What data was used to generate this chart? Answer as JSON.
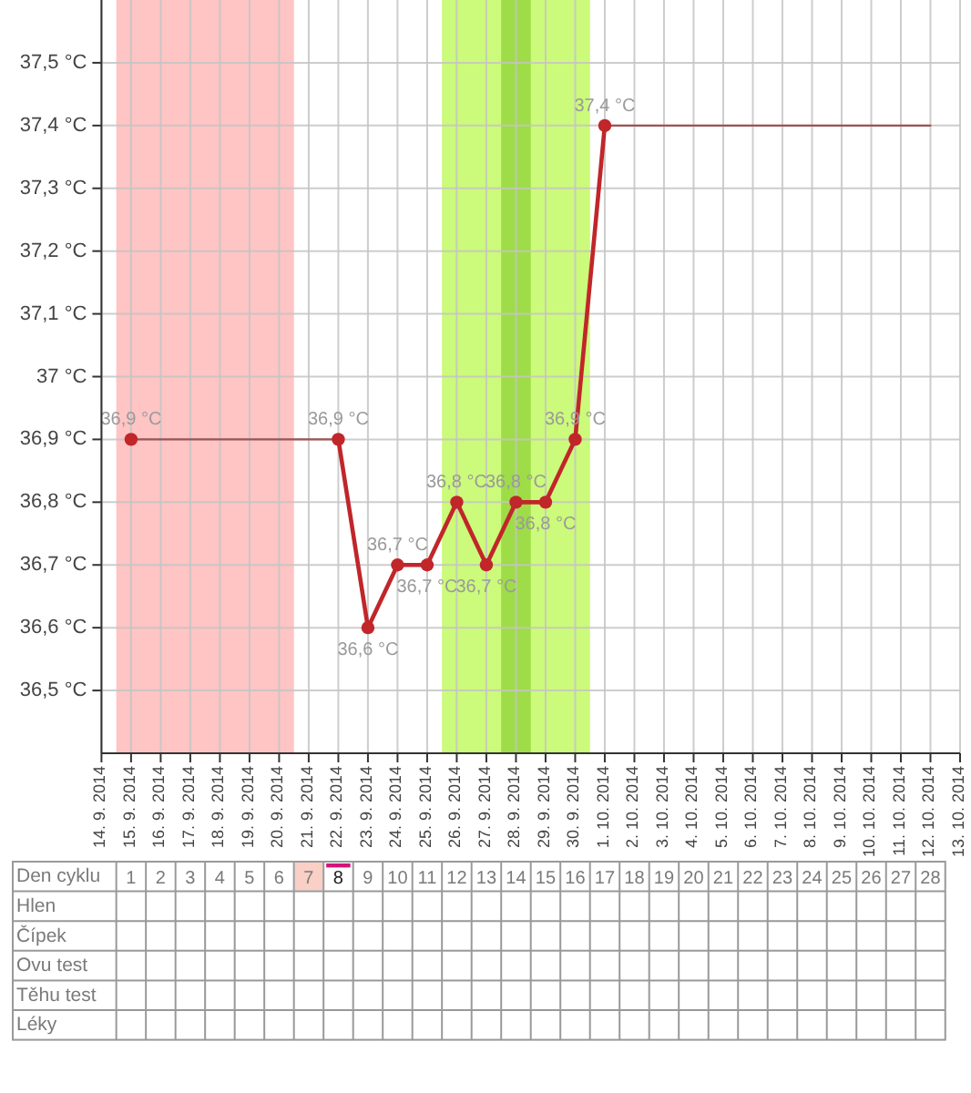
{
  "chart_data": {
    "type": "line",
    "categories": [
      "14. 9. 2014",
      "15. 9. 2014",
      "16. 9. 2014",
      "17. 9. 2014",
      "18. 9. 2014",
      "19. 9. 2014",
      "20. 9. 2014",
      "21. 9. 2014",
      "22. 9. 2014",
      "23. 9. 2014",
      "24. 9. 2014",
      "25. 9. 2014",
      "26. 9. 2014",
      "27. 9. 2014",
      "28. 9. 2014",
      "29. 9. 2014",
      "30. 9. 2014",
      "1. 10. 2014",
      "2. 10. 2014",
      "3. 10. 2014",
      "4. 10. 2014",
      "5. 10. 2014",
      "6. 10. 2014",
      "7. 10. 2014",
      "8. 10. 2014",
      "9. 10. 2014",
      "10. 10. 2014",
      "11. 10. 2014",
      "12. 10. 2014",
      "13. 10. 2014"
    ],
    "series": [
      {
        "color": "#a05252",
        "marker": "none",
        "values": [
          null,
          36.9,
          36.9,
          36.9,
          36.9,
          36.9,
          36.9,
          36.9,
          36.9,
          null,
          null,
          null,
          null,
          null,
          null,
          null,
          null,
          37.4,
          37.4,
          37.4,
          37.4,
          37.4,
          37.4,
          37.4,
          37.4,
          37.4,
          37.4,
          37.4,
          37.4,
          null
        ]
      },
      {
        "color": "#c0262a",
        "values": [
          null,
          36.9,
          null,
          null,
          null,
          null,
          null,
          null,
          36.9,
          36.6,
          36.7,
          36.7,
          36.8,
          36.7,
          36.8,
          36.8,
          36.9,
          37.4,
          null,
          null,
          null,
          null,
          null,
          null,
          null,
          null,
          null,
          null,
          null,
          null
        ],
        "value_labels": [
          null,
          "36,9 °C",
          null,
          null,
          null,
          null,
          null,
          null,
          "36,9 °C",
          "36,6 °C",
          "36,7 °C",
          "36,7 °C",
          "36,8 °C",
          "36,7 °C",
          "36,8 °C",
          "36,8 °C",
          "36,9 °C",
          "37,4 °C",
          null,
          null,
          null,
          null,
          null,
          null,
          null,
          null,
          null,
          null,
          null,
          null
        ]
      }
    ],
    "marker": "circle",
    "ylim": [
      36.4,
      37.6
    ],
    "yticks": [
      {
        "value": 36.5,
        "label": "36,5 °C"
      },
      {
        "value": 36.6,
        "label": "36,6 °C"
      },
      {
        "value": 36.7,
        "label": "36,7 °C"
      },
      {
        "value": 36.8,
        "label": "36,8 °C"
      },
      {
        "value": 36.9,
        "label": "36,9 °C"
      },
      {
        "value": 37,
        "label": "37 °C"
      },
      {
        "value": 37.1,
        "label": "37,1 °C"
      },
      {
        "value": 37.2,
        "label": "37,2 °C"
      },
      {
        "value": 37.3,
        "label": "37,3 °C"
      },
      {
        "value": 37.4,
        "label": "37,4 °C"
      },
      {
        "value": 37.5,
        "label": "37,5 °C"
      }
    ],
    "grid": true,
    "bands": [
      {
        "axis": "x",
        "from": "15. 9. 2014",
        "to": "20. 9. 2014",
        "color": "#ffc4c4"
      },
      {
        "axis": "x",
        "from": "26. 9. 2014",
        "to": "30. 9. 2014",
        "color": "#ccfa7a"
      },
      {
        "axis": "x",
        "from": "28. 9. 2014",
        "to": "28. 9. 2014",
        "color": "#9edc48"
      }
    ],
    "x2label": "Den cyklu",
    "x2lim": [
      0,
      29
    ],
    "x2ticks": [
      1,
      2,
      3,
      4,
      5,
      6,
      7,
      8,
      9,
      10,
      11,
      12,
      13,
      14,
      15,
      16,
      17,
      18,
      19,
      20,
      21,
      22,
      23,
      24,
      25,
      26,
      27,
      28
    ],
    "annotations": [
      "Hlen",
      "Čípek",
      "Ovu test",
      "Těhu test",
      "Léky"
    ]
  }
}
